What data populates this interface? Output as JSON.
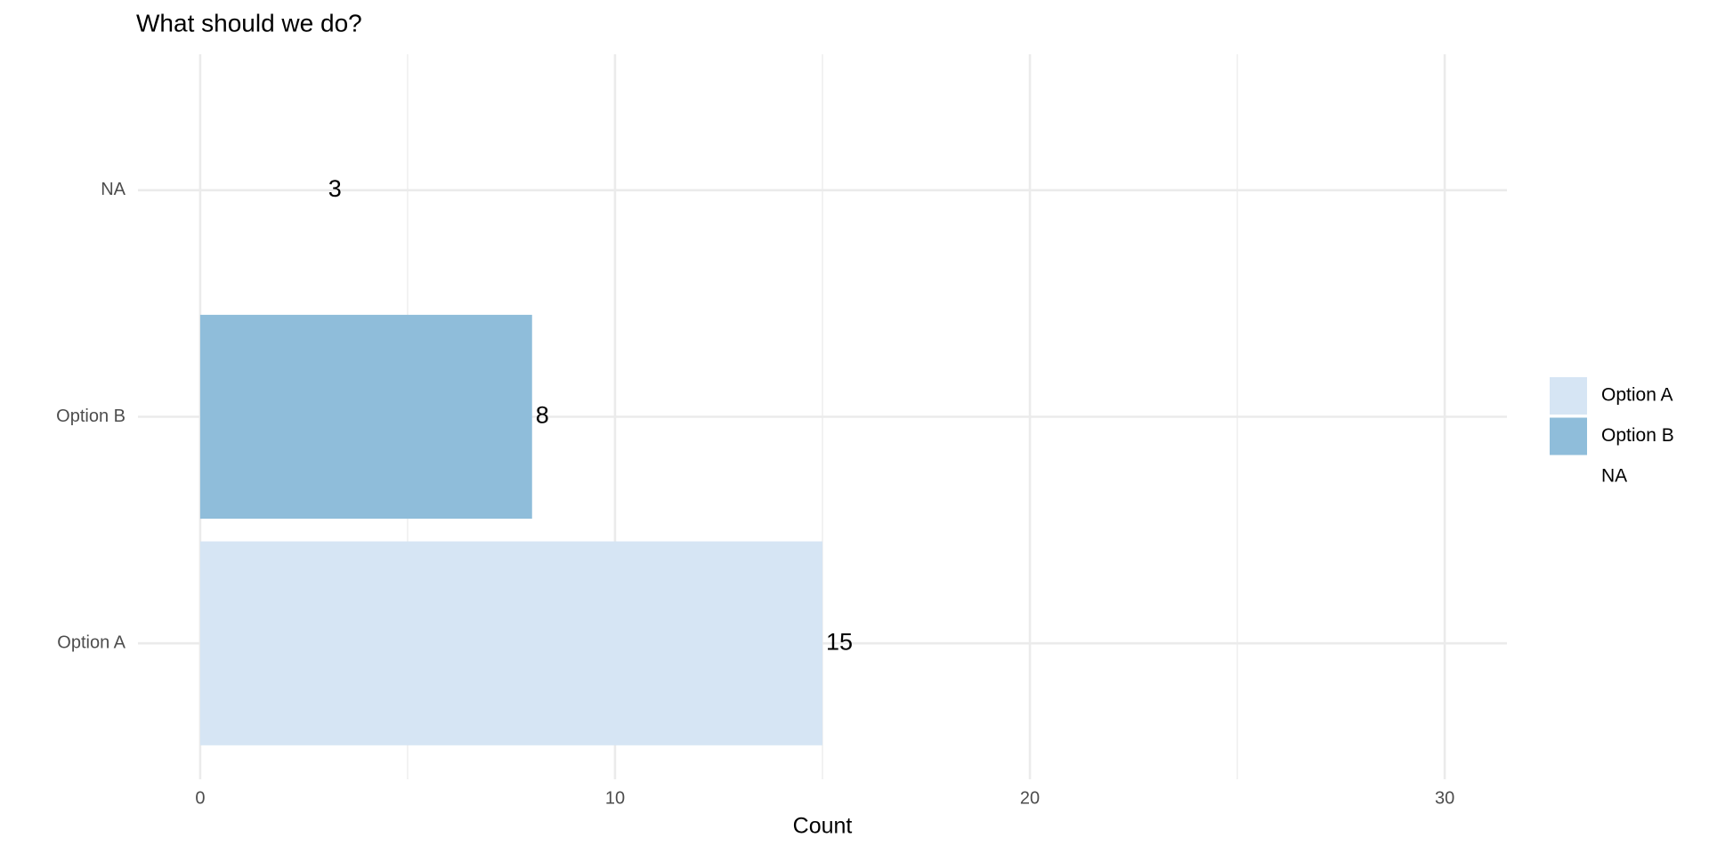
{
  "chart_data": {
    "type": "bar",
    "orientation": "horizontal",
    "title": "What should we do?",
    "x_label": "Count",
    "categories": [
      "Option A",
      "Option B",
      "NA"
    ],
    "values": [
      15,
      8,
      3
    ],
    "colors": [
      "#d6e5f4",
      "#8fbdda",
      null
    ],
    "xlim": [
      -1.5,
      31.5
    ],
    "xticks": [
      0,
      10,
      20,
      30
    ],
    "x_minor_ticks": [
      5,
      15,
      25
    ],
    "grid": true,
    "legend": "right"
  }
}
